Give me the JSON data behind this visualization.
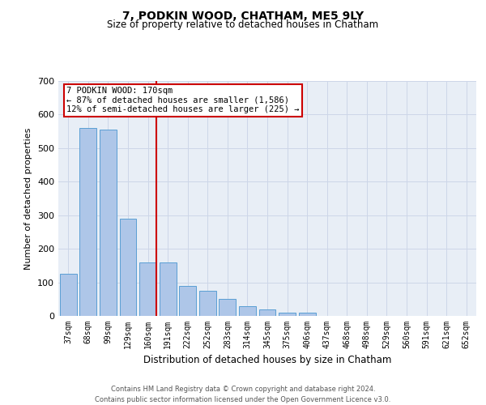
{
  "title": "7, PODKIN WOOD, CHATHAM, ME5 9LY",
  "subtitle": "Size of property relative to detached houses in Chatham",
  "xlabel": "Distribution of detached houses by size in Chatham",
  "ylabel": "Number of detached properties",
  "categories": [
    "37sqm",
    "68sqm",
    "99sqm",
    "129sqm",
    "160sqm",
    "191sqm",
    "222sqm",
    "252sqm",
    "283sqm",
    "314sqm",
    "345sqm",
    "375sqm",
    "406sqm",
    "437sqm",
    "468sqm",
    "498sqm",
    "529sqm",
    "560sqm",
    "591sqm",
    "621sqm",
    "652sqm"
  ],
  "values": [
    125,
    560,
    555,
    290,
    160,
    160,
    90,
    75,
    50,
    30,
    20,
    10,
    10,
    0,
    0,
    0,
    0,
    0,
    0,
    0,
    0
  ],
  "bar_color": "#aec6e8",
  "bar_edge_color": "#5a9fd4",
  "red_line_index": 4,
  "annotation_text_line1": "7 PODKIN WOOD: 170sqm",
  "annotation_text_line2": "← 87% of detached houses are smaller (1,586)",
  "annotation_text_line3": "12% of semi-detached houses are larger (225) →",
  "annotation_box_color": "#ffffff",
  "annotation_box_edge": "#cc0000",
  "ylim": [
    0,
    700
  ],
  "yticks": [
    0,
    100,
    200,
    300,
    400,
    500,
    600,
    700
  ],
  "grid_color": "#cdd6e8",
  "footer_line1": "Contains HM Land Registry data © Crown copyright and database right 2024.",
  "footer_line2": "Contains public sector information licensed under the Open Government Licence v3.0.",
  "red_line_color": "#cc0000",
  "background_color": "#e8eef6"
}
